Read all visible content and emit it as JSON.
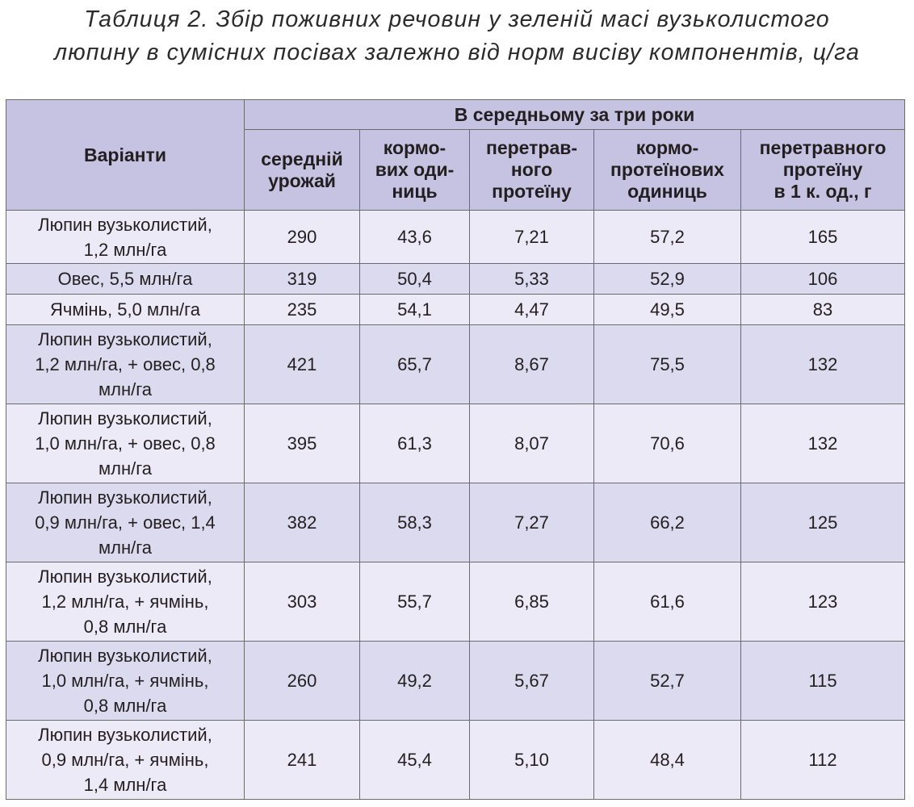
{
  "caption": {
    "line1": "Таблиця 2. Збір поживних речовин у зеленій масі вузьколистого",
    "line2": "люпину в сумісних посівах залежно від норм висіву компонентів, ц/га"
  },
  "table": {
    "variants_header": "Варіанти",
    "group_header": "В середньому за три роки",
    "columns": [
      [
        "середній",
        "урожай"
      ],
      [
        "кормо-",
        "вих оди-",
        "ниць"
      ],
      [
        "перетрав-",
        "ного",
        "протеїну"
      ],
      [
        "кормо-",
        "протеїнових",
        "одиниць"
      ],
      [
        "перетравного",
        "протеїну",
        "в 1 к. од., г"
      ]
    ],
    "rows": [
      {
        "variant": [
          "Люпин вузьколистий,",
          "1,2 млн/га"
        ],
        "values": [
          "290",
          "43,6",
          "7,21",
          "57,2",
          "165"
        ]
      },
      {
        "variant": [
          "Овес, 5,5 млн/га"
        ],
        "values": [
          "319",
          "50,4",
          "5,33",
          "52,9",
          "106"
        ]
      },
      {
        "variant": [
          "Ячмінь, 5,0 млн/га"
        ],
        "values": [
          "235",
          "54,1",
          "4,47",
          "49,5",
          "83"
        ]
      },
      {
        "variant": [
          "Люпин вузьколистий,",
          "1,2 млн/га, + овес, 0,8",
          "млн/га"
        ],
        "values": [
          "421",
          "65,7",
          "8,67",
          "75,5",
          "132"
        ]
      },
      {
        "variant": [
          "Люпин вузьколистий,",
          "1,0 млн/га, + овес, 0,8",
          "млн/га"
        ],
        "values": [
          "395",
          "61,3",
          "8,07",
          "70,6",
          "132"
        ]
      },
      {
        "variant": [
          "Люпин вузьколистий,",
          "0,9 млн/га, + овес, 1,4",
          "млн/га"
        ],
        "values": [
          "382",
          "58,3",
          "7,27",
          "66,2",
          "125"
        ]
      },
      {
        "variant": [
          "Люпин вузьколистий,",
          "1,2 млн/га, + ячмінь,",
          "0,8 млн/га"
        ],
        "values": [
          "303",
          "55,7",
          "6,85",
          "61,6",
          "123"
        ]
      },
      {
        "variant": [
          "Люпин вузьколистий,",
          "1,0 млн/га, + ячмінь,",
          "0,8 млн/га"
        ],
        "values": [
          "260",
          "49,2",
          "5,67",
          "52,7",
          "115"
        ]
      },
      {
        "variant": [
          "Люпин вузьколистий,",
          "0,9 млн/га, + ячмінь,",
          "1,4 млн/га"
        ],
        "values": [
          "241",
          "45,4",
          "5,10",
          "48,4",
          "112"
        ]
      }
    ]
  }
}
